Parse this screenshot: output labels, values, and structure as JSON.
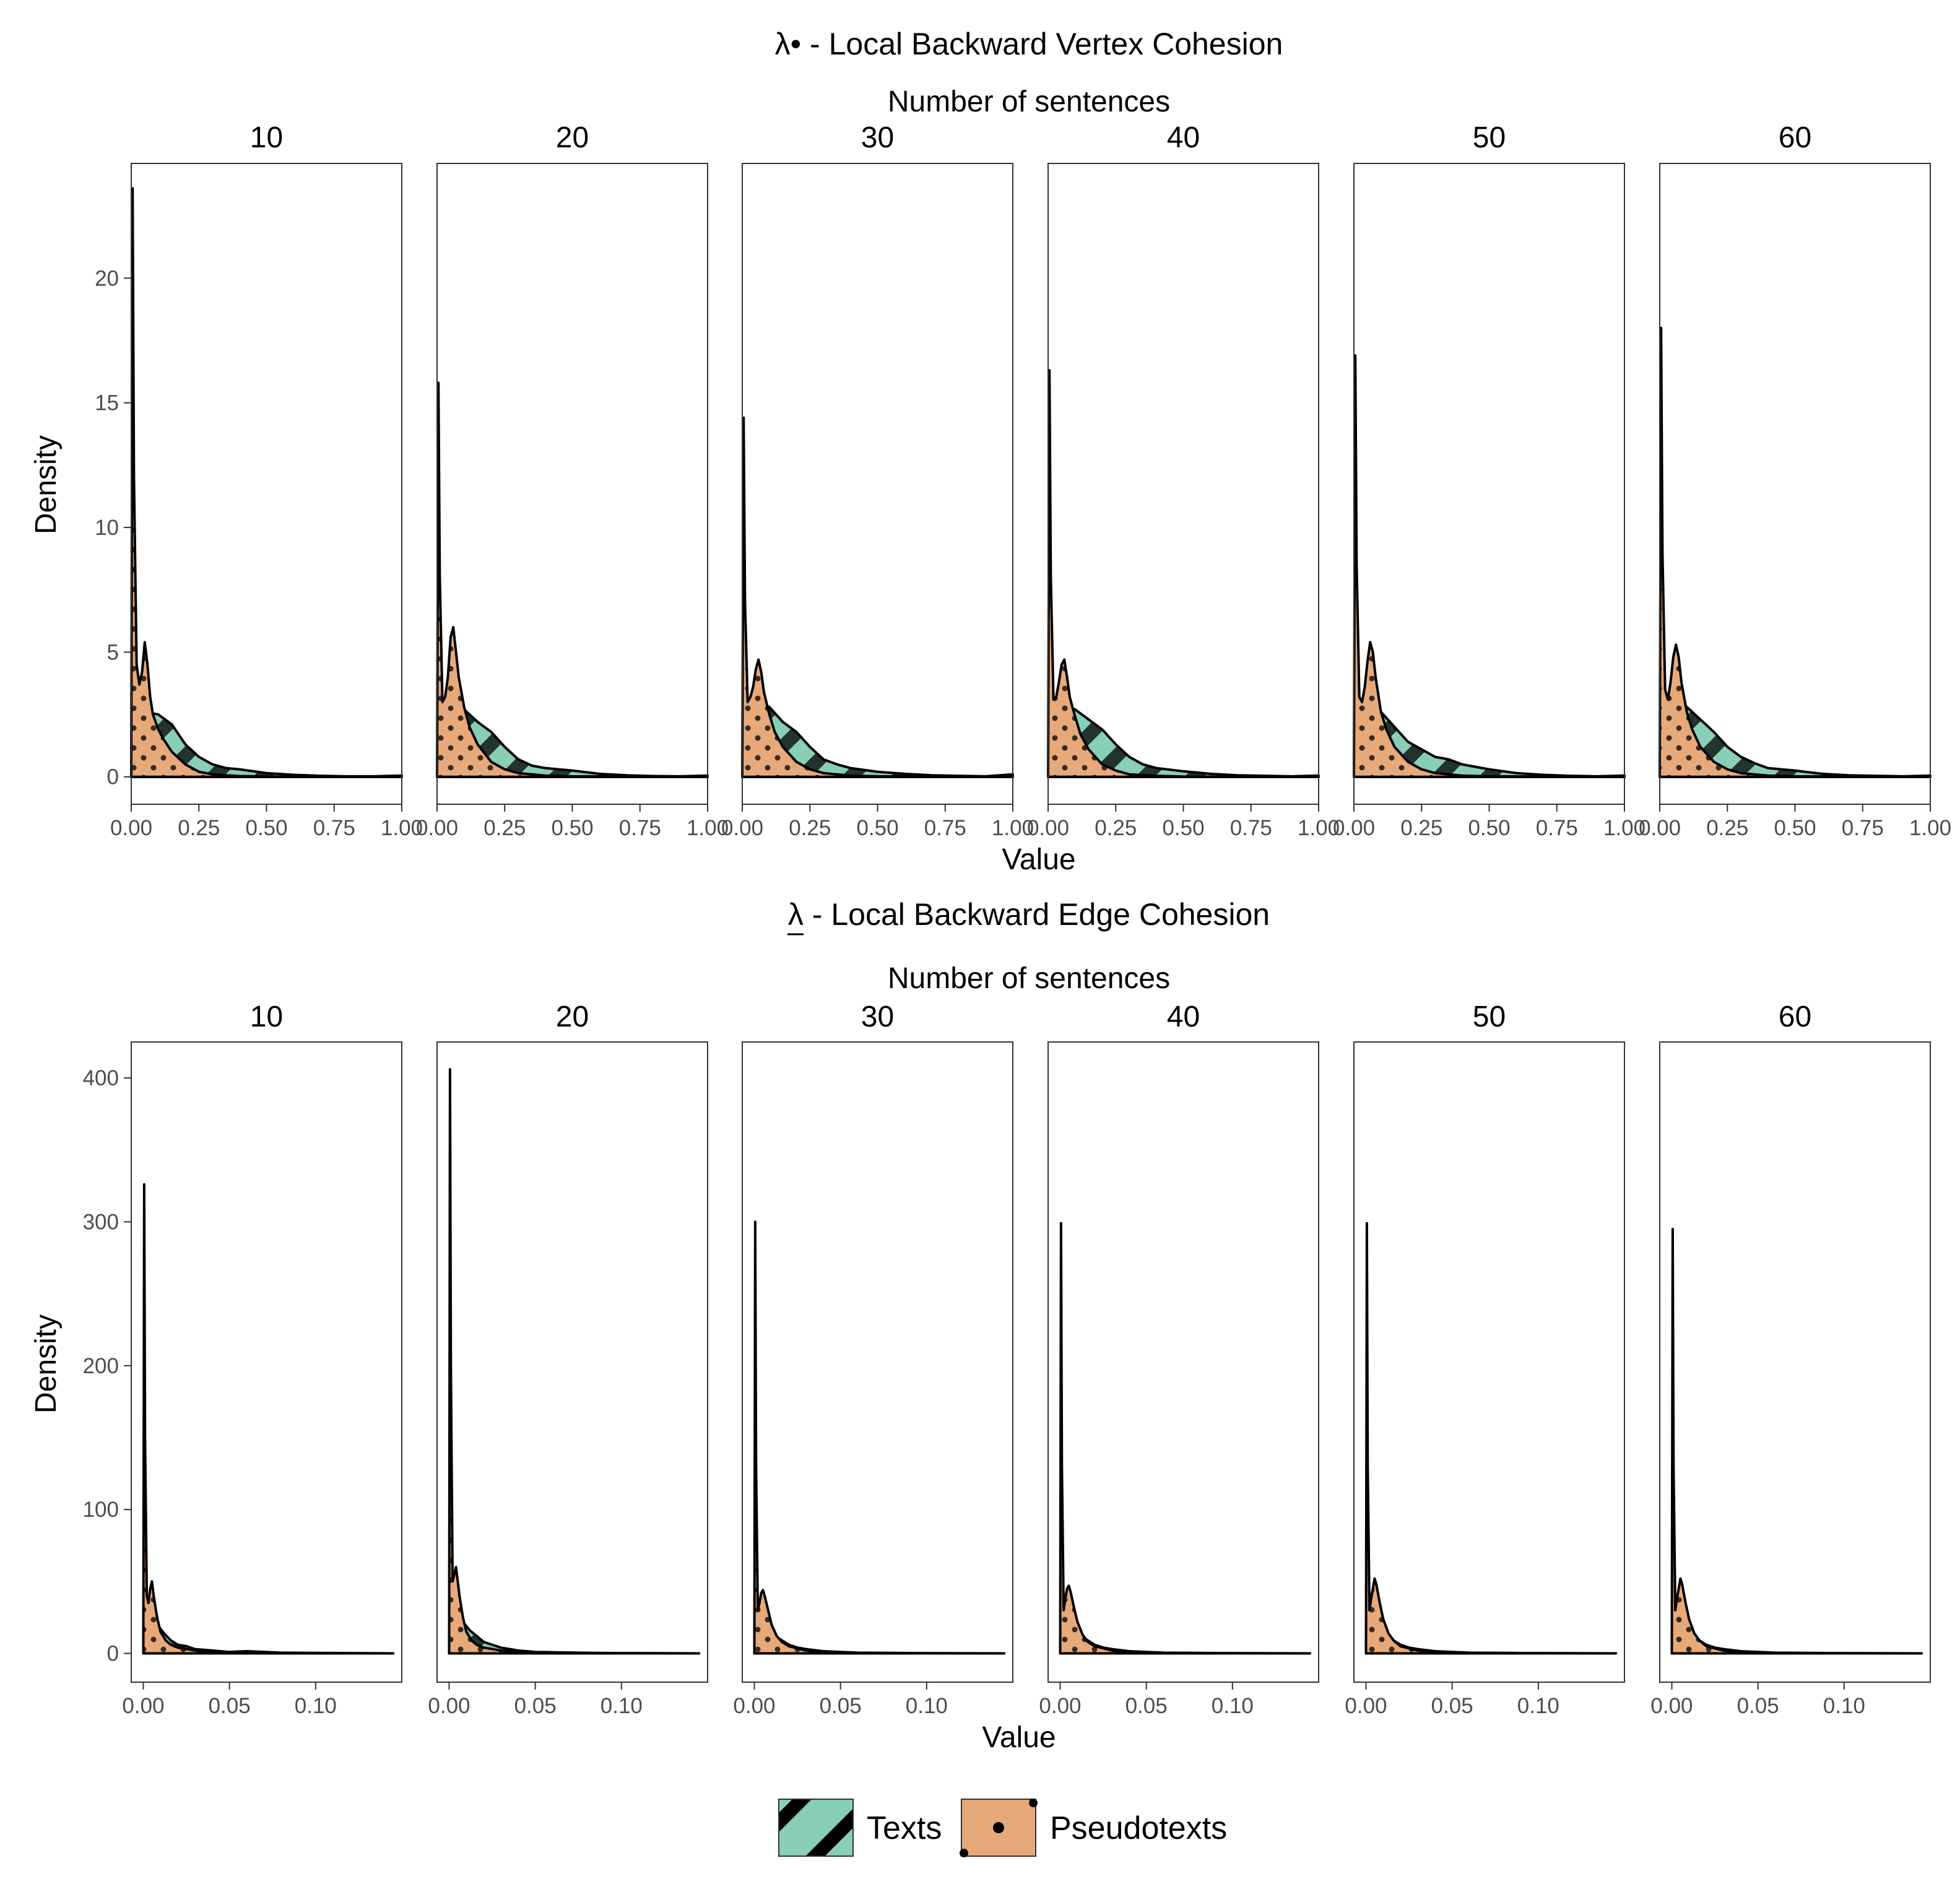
{
  "colors": {
    "texts_fill": "#88cfb5",
    "pseudo_fill": "#e8a97a",
    "line": "#000000",
    "frame": "#333333"
  },
  "legend": {
    "items": [
      {
        "label": "Texts",
        "pattern": "diagonal-stripes",
        "color": "#88cfb5"
      },
      {
        "label": "Pseudotexts",
        "pattern": "dots",
        "color": "#e8a97a"
      }
    ]
  },
  "chart_data": [
    {
      "type": "area",
      "title": "λ• - Local Backward Vertex Cohesion",
      "facet_label": "Number of sentences",
      "facets": [
        "10",
        "20",
        "30",
        "40",
        "50",
        "60"
      ],
      "xlabel": "Value",
      "ylabel": "Density",
      "xlim": [
        0,
        1
      ],
      "ylim": [
        -1.1,
        24.6
      ],
      "xticks": [
        0,
        0.25,
        0.5,
        0.75,
        1
      ],
      "xtick_labels": [
        "0.00",
        "0.25",
        "0.50",
        "0.75",
        "1.00"
      ],
      "yticks": [
        0,
        5,
        10,
        15,
        20
      ],
      "series": [
        {
          "name": "Texts",
          "x": [
            0,
            0.02,
            0.05,
            0.1,
            0.15,
            0.2,
            0.25,
            0.3,
            0.35,
            0.4,
            0.5,
            0.6,
            0.7,
            0.8,
            0.9,
            1.0
          ],
          "values_by_facet": [
            [
              0,
              3.6,
              2.6,
              2.5,
              2.1,
              1.3,
              0.8,
              0.5,
              0.35,
              0.3,
              0.15,
              0.08,
              0.04,
              0.02,
              0.02,
              0.05
            ],
            [
              0,
              3.0,
              3.0,
              2.7,
              2.2,
              1.8,
              1.2,
              0.7,
              0.45,
              0.35,
              0.25,
              0.12,
              0.06,
              0.03,
              0.02,
              0.05
            ],
            [
              0,
              3.0,
              3.0,
              2.8,
              2.2,
              1.8,
              1.2,
              0.7,
              0.5,
              0.35,
              0.2,
              0.12,
              0.06,
              0.04,
              0.02,
              0.1
            ],
            [
              0,
              2.9,
              2.9,
              2.7,
              2.3,
              1.9,
              1.3,
              0.8,
              0.5,
              0.35,
              0.22,
              0.12,
              0.06,
              0.04,
              0.02,
              0.05
            ],
            [
              0,
              2.9,
              2.8,
              2.6,
              2.0,
              1.4,
              1.1,
              0.8,
              0.7,
              0.5,
              0.3,
              0.15,
              0.08,
              0.04,
              0.02,
              0.05
            ],
            [
              0,
              2.9,
              2.9,
              2.8,
              2.3,
              1.8,
              1.2,
              0.8,
              0.55,
              0.35,
              0.25,
              0.12,
              0.06,
              0.04,
              0.02,
              0.05
            ]
          ]
        },
        {
          "name": "Pseudotexts",
          "x": [
            0,
            0.005,
            0.01,
            0.02,
            0.03,
            0.04,
            0.05,
            0.06,
            0.07,
            0.08,
            0.1,
            0.12,
            0.15,
            0.2,
            0.25,
            0.3,
            0.4,
            0.5,
            1.0
          ],
          "values_by_facet": [
            [
              0,
              23.6,
              12.0,
              4.5,
              3.7,
              4.2,
              5.4,
              4.5,
              3.2,
              2.5,
              1.9,
              1.5,
              1.0,
              0.5,
              0.2,
              0.1,
              0.03,
              0.01,
              0
            ],
            [
              0,
              15.8,
              8.0,
              3.0,
              3.2,
              4.0,
              5.6,
              6.0,
              5.0,
              4.0,
              2.8,
              2.0,
              1.3,
              0.6,
              0.3,
              0.15,
              0.05,
              0.02,
              0
            ],
            [
              0,
              14.4,
              7.0,
              3.0,
              3.2,
              3.6,
              4.3,
              4.7,
              4.2,
              3.4,
              2.5,
              1.8,
              1.2,
              0.6,
              0.3,
              0.15,
              0.05,
              0.02,
              0
            ],
            [
              0,
              16.3,
              8.0,
              3.1,
              3.2,
              3.8,
              4.5,
              4.7,
              4.0,
              3.2,
              2.4,
              1.7,
              1.1,
              0.5,
              0.25,
              0.1,
              0.04,
              0.01,
              0
            ],
            [
              0,
              16.9,
              8.5,
              3.2,
              3.0,
              3.6,
              4.6,
              5.4,
              5.0,
              4.0,
              2.6,
              1.9,
              1.2,
              0.6,
              0.3,
              0.15,
              0.05,
              0.02,
              0
            ],
            [
              0,
              18.0,
              9.0,
              3.5,
              3.1,
              3.8,
              4.8,
              5.3,
              4.8,
              3.8,
              2.6,
              1.9,
              1.2,
              0.6,
              0.3,
              0.15,
              0.05,
              0.02,
              0
            ]
          ]
        }
      ]
    },
    {
      "type": "area",
      "title": "λ - Local Backward Edge Cohesion",
      "title_marking": "underlined lambda",
      "facet_label": "Number of sentences",
      "facets": [
        "10",
        "20",
        "30",
        "40",
        "50",
        "60"
      ],
      "xlabel": "Value",
      "ylabel": "Density",
      "xlim": [
        -0.007,
        0.15
      ],
      "ylim": [
        -20,
        425
      ],
      "xticks": [
        0,
        0.05,
        0.1
      ],
      "xtick_labels": [
        "0.00",
        "0.05",
        "0.10"
      ],
      "yticks": [
        0,
        100,
        200,
        300,
        400
      ],
      "series": [
        {
          "name": "Texts",
          "x": [
            0,
            0.002,
            0.005,
            0.008,
            0.012,
            0.016,
            0.02,
            0.025,
            0.03,
            0.04,
            0.05,
            0.06,
            0.08,
            0.1,
            0.145
          ],
          "values_by_facet": [
            [
              0,
              30,
              25,
              20,
              14,
              9,
              6,
              5,
              3,
              2,
              1,
              1.5,
              0.5,
              0.3,
              0
            ],
            [
              0,
              28,
              24,
              22,
              16,
              12,
              8,
              6,
              4,
              2,
              1,
              0.8,
              0.4,
              0.2,
              0
            ],
            [
              0,
              25,
              20,
              17,
              12,
              9,
              6,
              4,
              3,
              1.5,
              1,
              0.5,
              0.3,
              0.1,
              0
            ],
            [
              0,
              26,
              22,
              18,
              13,
              9,
              6,
              4,
              3,
              1.5,
              1,
              0.5,
              0.3,
              0.1,
              0
            ],
            [
              0,
              25,
              20,
              17,
              12,
              9,
              6,
              4,
              3,
              1.5,
              1,
              0.5,
              0.3,
              0.1,
              0
            ],
            [
              0,
              25,
              20,
              17,
              12,
              9,
              6,
              4,
              3,
              1.5,
              1,
              0.5,
              0.3,
              0.1,
              0
            ]
          ]
        },
        {
          "name": "Pseudotexts",
          "x": [
            0,
            0.0005,
            0.001,
            0.002,
            0.003,
            0.004,
            0.005,
            0.006,
            0.008,
            0.01,
            0.013,
            0.016,
            0.02,
            0.03,
            0.04,
            0.06,
            0.145
          ],
          "values_by_facet": [
            [
              0,
              326,
              150,
              40,
              35,
              45,
              50,
              40,
              25,
              15,
              9,
              6,
              4,
              2,
              1,
              0.3,
              0
            ],
            [
              0,
              406,
              200,
              50,
              55,
              60,
              50,
              40,
              25,
              15,
              9,
              6,
              4,
              2,
              1,
              0.3,
              0
            ],
            [
              0,
              300,
              130,
              30,
              35,
              42,
              44,
              40,
              30,
              20,
              12,
              8,
              5,
              2,
              1,
              0.3,
              0
            ],
            [
              0,
              299,
              130,
              30,
              38,
              45,
              47,
              43,
              32,
              22,
              13,
              8,
              5,
              2,
              1,
              0.3,
              0
            ],
            [
              0,
              299,
              130,
              30,
              38,
              45,
              52,
              48,
              35,
              24,
              14,
              9,
              5,
              2,
              1,
              0.3,
              0
            ],
            [
              0,
              295,
              130,
              30,
              38,
              45,
              52,
              48,
              35,
              24,
              14,
              9,
              5,
              2,
              1,
              0.3,
              0
            ]
          ]
        }
      ]
    }
  ]
}
